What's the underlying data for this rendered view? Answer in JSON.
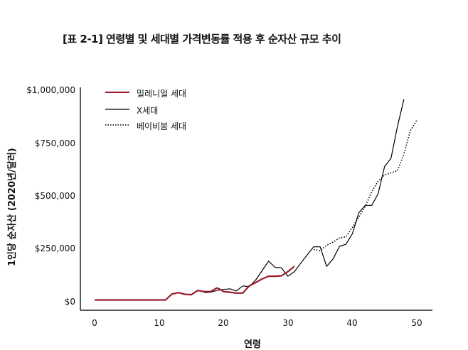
{
  "chart_data": {
    "type": "line",
    "title": "[표 2-1] 연령별 및 세대별 가격변동률 적용 후 순자산 규모 추이",
    "xlabel": "연령",
    "ylabel": "1인당 순자산 (2020년/달러)",
    "xlim": [
      0,
      52
    ],
    "ylim": [
      0,
      1000000
    ],
    "x_ticks": [
      "0",
      "10",
      "20",
      "30",
      "40",
      "50"
    ],
    "y_ticks": [
      "$0",
      "$250,000",
      "$500,000",
      "$750,000",
      "$1,000,000"
    ],
    "grid": false,
    "legend_position": "upper-left",
    "series": [
      {
        "name": "밀레니얼 세대",
        "color": "#9b1b2a",
        "style": "solid",
        "x": [
          0,
          11,
          12,
          13,
          14,
          15,
          16,
          17,
          18,
          19,
          19.5,
          20,
          21,
          22,
          23,
          24,
          25,
          26,
          27,
          28,
          29,
          30,
          31
        ],
        "y": [
          5000,
          5000,
          33000,
          40000,
          32000,
          30000,
          50000,
          45000,
          45000,
          62000,
          55000,
          45000,
          42000,
          38000,
          38000,
          72000,
          88000,
          105000,
          118000,
          118000,
          120000,
          140000,
          165000
        ]
      },
      {
        "name": "X세대",
        "color": "#000000",
        "style": "solid",
        "x": [
          17,
          18,
          19,
          20,
          21,
          22,
          23,
          24,
          25,
          26,
          27,
          28,
          29,
          30,
          31,
          32,
          33,
          34,
          35,
          36,
          37,
          38,
          39,
          40,
          41,
          42,
          43,
          44,
          45,
          46,
          47,
          48
        ],
        "y": [
          40000,
          42000,
          50000,
          55000,
          58000,
          48000,
          72000,
          68000,
          100000,
          145000,
          190000,
          160000,
          158000,
          118000,
          140000,
          180000,
          220000,
          258000,
          258000,
          165000,
          200000,
          260000,
          270000,
          320000,
          420000,
          455000,
          455000,
          510000,
          640000,
          680000,
          830000,
          960000
        ]
      },
      {
        "name": "베이비붐 세대",
        "color": "#000000",
        "style": "dotted",
        "x": [
          34,
          35,
          36,
          37,
          38,
          39,
          40,
          41,
          42,
          43,
          44,
          45,
          46,
          47,
          48,
          49,
          50
        ],
        "y": [
          245000,
          240000,
          265000,
          280000,
          300000,
          305000,
          350000,
          400000,
          450000,
          520000,
          570000,
          600000,
          610000,
          620000,
          700000,
          810000,
          860000
        ]
      }
    ]
  },
  "labels": {
    "title": "[표 2-1] 연령별 및 세대별 가격변동률 적용 후 순자산 규모 추이",
    "xlabel": "연령",
    "ylabel": "1인당 순자산 (2020년/달러)",
    "y_ticks": [
      "$0",
      "$250,000",
      "$500,000",
      "$750,000",
      "$1,000,000"
    ],
    "x_ticks": [
      "0",
      "10",
      "20",
      "30",
      "40",
      "50"
    ],
    "legend": [
      "밀레니얼 세대",
      "X세대",
      "베이비붐 세대"
    ]
  }
}
